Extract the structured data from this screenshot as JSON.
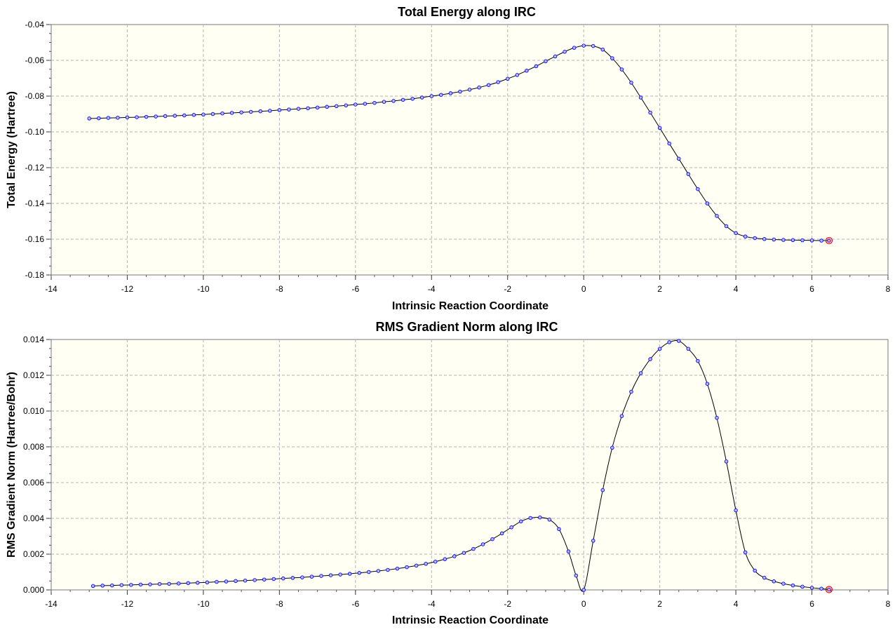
{
  "chart_data": [
    {
      "type": "line",
      "title": "Total Energy along IRC",
      "xlabel": "Intrinsic Reaction Coordinate",
      "ylabel": "Total Energy (Hartree)",
      "xlim": [
        -14,
        8
      ],
      "ylim": [
        -0.18,
        -0.04
      ],
      "xticks": [
        "-14",
        "-12",
        "-10",
        "-8",
        "-6",
        "-4",
        "-2",
        "0",
        "2",
        "4",
        "6",
        "8"
      ],
      "yticks": [
        "-0.04",
        "-0.06",
        "-0.08",
        "-0.10",
        "-0.12",
        "-0.14",
        "-0.16",
        "-0.18"
      ],
      "grid": true,
      "line_color": "#000000",
      "marker_color": "#0000ff",
      "highlight_color": "#ff0000",
      "series": [
        {
          "x": [
            -13.0,
            -12.75,
            -12.5,
            -12.25,
            -12.0,
            -11.75,
            -11.5,
            -11.25,
            -11.0,
            -10.75,
            -10.5,
            -10.25,
            -10.0,
            -9.75,
            -9.5,
            -9.25,
            -9.0,
            -8.75,
            -8.5,
            -8.25,
            -8.0,
            -7.75,
            -7.5,
            -7.25,
            -7.0,
            -6.75,
            -6.5,
            -6.25,
            -6.0,
            -5.75,
            -5.5,
            -5.25,
            -5.0,
            -4.75,
            -4.5,
            -4.25,
            -4.0,
            -3.75,
            -3.5,
            -3.25,
            -3.0,
            -2.75,
            -2.5,
            -2.25,
            -2.0,
            -1.75,
            -1.5,
            -1.25,
            -1.0,
            -0.75,
            -0.5,
            -0.25,
            0.0,
            0.25,
            0.5,
            0.75,
            1.0,
            1.25,
            1.5,
            1.75,
            2.0,
            2.25,
            2.5,
            2.75,
            3.0,
            3.25,
            3.5,
            3.75,
            4.0,
            4.25,
            4.5,
            4.75,
            5.0,
            5.25,
            5.5,
            5.75,
            6.0,
            6.25,
            6.45
          ],
          "y": [
            -0.0925,
            -0.0924,
            -0.0922,
            -0.0921,
            -0.0919,
            -0.0918,
            -0.0916,
            -0.0914,
            -0.0912,
            -0.091,
            -0.0908,
            -0.0905,
            -0.0903,
            -0.09,
            -0.0897,
            -0.0894,
            -0.0891,
            -0.0888,
            -0.0885,
            -0.0882,
            -0.0878,
            -0.0875,
            -0.0871,
            -0.0868,
            -0.0864,
            -0.086,
            -0.0856,
            -0.0852,
            -0.0847,
            -0.0843,
            -0.0838,
            -0.0832,
            -0.0827,
            -0.0821,
            -0.0815,
            -0.0808,
            -0.08,
            -0.0793,
            -0.0784,
            -0.0775,
            -0.0764,
            -0.0752,
            -0.0738,
            -0.0722,
            -0.0703,
            -0.0682,
            -0.0658,
            -0.0633,
            -0.0605,
            -0.0578,
            -0.0552,
            -0.053,
            -0.0518,
            -0.052,
            -0.054,
            -0.0588,
            -0.0651,
            -0.0725,
            -0.0808,
            -0.0892,
            -0.0978,
            -0.1065,
            -0.115,
            -0.1236,
            -0.132,
            -0.14,
            -0.147,
            -0.1527,
            -0.1566,
            -0.1585,
            -0.1594,
            -0.1599,
            -0.1602,
            -0.1604,
            -0.1605,
            -0.1606,
            -0.1607,
            -0.1608,
            -0.1608
          ]
        }
      ]
    },
    {
      "type": "line",
      "title": "RMS Gradient Norm along IRC",
      "xlabel": "Intrinsic Reaction Coordinate",
      "ylabel": "RMS Gradient Norm (Hartree/Bohr)",
      "xlim": [
        -14,
        8
      ],
      "ylim": [
        0.0,
        0.014
      ],
      "xticks": [
        "-14",
        "-12",
        "-10",
        "-8",
        "-6",
        "-4",
        "-2",
        "0",
        "2",
        "4",
        "6",
        "8"
      ],
      "yticks": [
        "0.014",
        "0.012",
        "0.010",
        "0.008",
        "0.006",
        "0.004",
        "0.002",
        "0.000"
      ],
      "grid": true,
      "line_color": "#000000",
      "marker_color": "#0000ff",
      "highlight_color": "#ff0000",
      "series": [
        {
          "x": [
            -12.9,
            -12.65,
            -12.4,
            -12.15,
            -11.9,
            -11.65,
            -11.4,
            -11.15,
            -10.9,
            -10.65,
            -10.4,
            -10.15,
            -9.9,
            -9.65,
            -9.4,
            -9.15,
            -8.9,
            -8.65,
            -8.4,
            -8.15,
            -7.9,
            -7.65,
            -7.4,
            -7.15,
            -6.9,
            -6.65,
            -6.4,
            -6.15,
            -5.9,
            -5.65,
            -5.4,
            -5.15,
            -4.9,
            -4.65,
            -4.4,
            -4.15,
            -3.9,
            -3.65,
            -3.4,
            -3.15,
            -2.9,
            -2.65,
            -2.4,
            -2.15,
            -1.9,
            -1.65,
            -1.4,
            -1.15,
            -0.9,
            -0.65,
            -0.4,
            -0.2,
            0.0,
            0.25,
            0.5,
            0.75,
            1.0,
            1.25,
            1.5,
            1.75,
            2.0,
            2.25,
            2.5,
            2.75,
            3.0,
            3.25,
            3.5,
            3.75,
            4.0,
            4.25,
            4.5,
            4.75,
            5.0,
            5.25,
            5.5,
            5.75,
            6.0,
            6.25,
            6.45
          ],
          "y": [
            0.00022,
            0.00024,
            0.00025,
            0.00027,
            0.00028,
            0.0003,
            0.00031,
            0.00033,
            0.00034,
            0.00036,
            0.00038,
            0.0004,
            0.00042,
            0.00045,
            0.00047,
            0.0005,
            0.00052,
            0.00055,
            0.00058,
            0.00061,
            0.00064,
            0.00067,
            0.0007,
            0.00074,
            0.00078,
            0.00082,
            0.00086,
            0.0009,
            0.00095,
            0.001,
            0.00106,
            0.00112,
            0.00119,
            0.00127,
            0.00136,
            0.00146,
            0.00158,
            0.00172,
            0.00188,
            0.00207,
            0.00229,
            0.00255,
            0.00284,
            0.00316,
            0.0035,
            0.00383,
            0.00402,
            0.00405,
            0.00393,
            0.0034,
            0.00215,
            0.0008,
            0.0,
            0.00275,
            0.00558,
            0.00795,
            0.00972,
            0.01108,
            0.01212,
            0.0129,
            0.01348,
            0.01385,
            0.01392,
            0.01348,
            0.0128,
            0.01152,
            0.00962,
            0.00718,
            0.00445,
            0.0021,
            0.00108,
            0.00068,
            0.00048,
            0.00035,
            0.00025,
            0.00018,
            0.00012,
            7e-05,
            2e-05
          ]
        }
      ]
    }
  ]
}
